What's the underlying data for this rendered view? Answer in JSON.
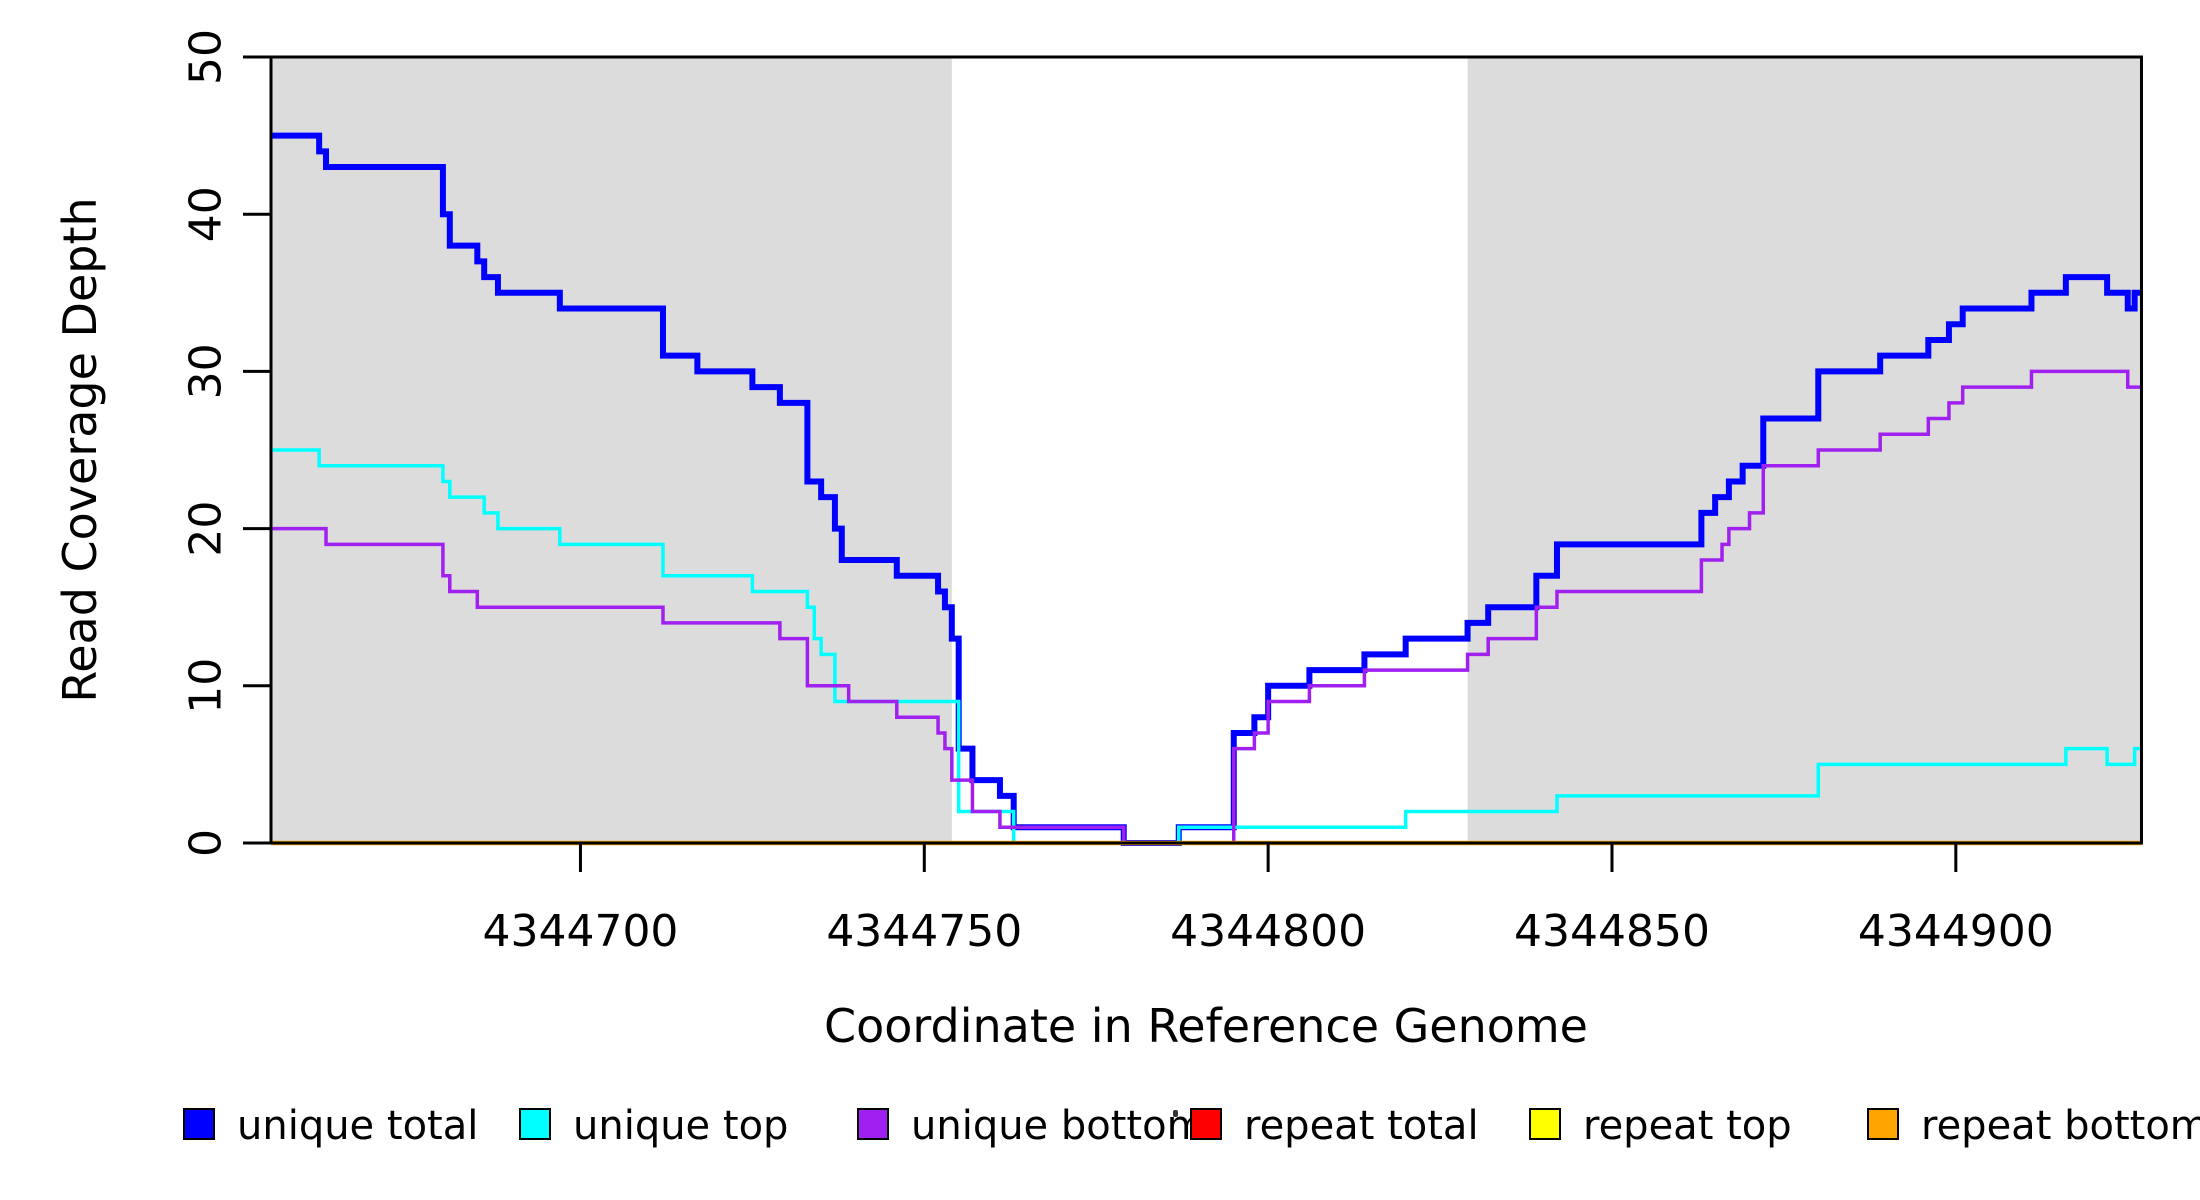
{
  "figure": {
    "kind": "R step plot of sequencing read coverage",
    "background": "#ffffff",
    "shade_color": "#dcdcdc"
  },
  "legend": [
    {
      "name": "unique-total",
      "label": "unique total",
      "color": "#0000ff"
    },
    {
      "name": "unique-top",
      "label": "unique top",
      "color": "#00ffff"
    },
    {
      "name": "unique-bottom",
      "label": "unique bottom",
      "color": "#a020f0"
    },
    {
      "name": "repeat-total",
      "label": "repeat total",
      "color": "#ff0000"
    },
    {
      "name": "repeat-top",
      "label": "repeat top",
      "color": "#ffff00"
    },
    {
      "name": "repeat-bottom",
      "label": "repeat bottom",
      "color": "#ffa500"
    }
  ],
  "chart_data": {
    "type": "line",
    "subtype": "step-after",
    "title": "",
    "xlabel": "Coordinate in Reference Genome",
    "ylabel": "Read Coverage Depth",
    "xlim": [
      4344655,
      4344927
    ],
    "ylim": [
      0,
      50
    ],
    "x_ticks": [
      {
        "value": 4344700,
        "label": "4344700"
      },
      {
        "value": 4344750,
        "label": "4344750"
      },
      {
        "value": 4344800,
        "label": "4344800"
      },
      {
        "value": 4344850,
        "label": "4344850"
      },
      {
        "value": 4344900,
        "label": "4344900"
      }
    ],
    "y_ticks": [
      {
        "value": 0,
        "label": "0"
      },
      {
        "value": 10,
        "label": "10"
      },
      {
        "value": 20,
        "label": "20"
      },
      {
        "value": 30,
        "label": "30"
      },
      {
        "value": 40,
        "label": "40"
      },
      {
        "value": 50,
        "label": "50"
      }
    ],
    "grid": false,
    "legend_position": "bottom",
    "shaded_regions": [
      {
        "x0": 4344655,
        "x1": 4344754,
        "color": "#dcdcdc"
      },
      {
        "x0": 4344829,
        "x1": 4344927,
        "color": "#dcdcdc"
      }
    ],
    "series": [
      {
        "name": "unique total",
        "color": "#0000ff",
        "width": 6,
        "steps": [
          [
            4344655,
            45
          ],
          [
            4344662,
            44
          ],
          [
            4344663,
            43
          ],
          [
            4344680,
            40
          ],
          [
            4344681,
            38
          ],
          [
            4344685,
            37
          ],
          [
            4344686,
            36
          ],
          [
            4344688,
            35
          ],
          [
            4344697,
            34
          ],
          [
            4344712,
            31
          ],
          [
            4344717,
            30
          ],
          [
            4344725,
            29
          ],
          [
            4344729,
            28
          ],
          [
            4344733,
            23
          ],
          [
            4344735,
            22
          ],
          [
            4344737,
            20
          ],
          [
            4344738,
            18
          ],
          [
            4344746,
            17
          ],
          [
            4344752,
            16
          ],
          [
            4344753,
            15
          ],
          [
            4344754,
            13
          ],
          [
            4344755,
            6
          ],
          [
            4344757,
            4
          ],
          [
            4344761,
            3
          ],
          [
            4344763,
            1
          ],
          [
            4344779,
            0
          ],
          [
            4344787,
            1
          ],
          [
            4344795,
            7
          ],
          [
            4344798,
            8
          ],
          [
            4344800,
            10
          ],
          [
            4344806,
            11
          ],
          [
            4344814,
            12
          ],
          [
            4344820,
            13
          ],
          [
            4344829,
            14
          ],
          [
            4344832,
            15
          ],
          [
            4344839,
            17
          ],
          [
            4344842,
            19
          ],
          [
            4344863,
            21
          ],
          [
            4344865,
            22
          ],
          [
            4344867,
            23
          ],
          [
            4344869,
            24
          ],
          [
            4344872,
            27
          ],
          [
            4344880,
            30
          ],
          [
            4344889,
            31
          ],
          [
            4344896,
            32
          ],
          [
            4344899,
            33
          ],
          [
            4344901,
            34
          ],
          [
            4344911,
            35
          ],
          [
            4344916,
            36
          ],
          [
            4344922,
            35
          ],
          [
            4344925,
            34
          ],
          [
            4344926,
            35
          ]
        ]
      },
      {
        "name": "unique top",
        "color": "#00ffff",
        "width": 3.5,
        "steps": [
          [
            4344655,
            25
          ],
          [
            4344662,
            24
          ],
          [
            4344680,
            23
          ],
          [
            4344681,
            22
          ],
          [
            4344686,
            21
          ],
          [
            4344688,
            20
          ],
          [
            4344697,
            19
          ],
          [
            4344712,
            17
          ],
          [
            4344725,
            16
          ],
          [
            4344733,
            15
          ],
          [
            4344734,
            13
          ],
          [
            4344735,
            12
          ],
          [
            4344737,
            9
          ],
          [
            4344755,
            2
          ],
          [
            4344763,
            0
          ],
          [
            4344787,
            1
          ],
          [
            4344820,
            2
          ],
          [
            4344842,
            3
          ],
          [
            4344880,
            5
          ],
          [
            4344916,
            6
          ],
          [
            4344922,
            5
          ],
          [
            4344926,
            6
          ]
        ]
      },
      {
        "name": "unique bottom",
        "color": "#a020f0",
        "width": 3.5,
        "steps": [
          [
            4344655,
            20
          ],
          [
            4344663,
            19
          ],
          [
            4344680,
            17
          ],
          [
            4344681,
            16
          ],
          [
            4344685,
            15
          ],
          [
            4344712,
            14
          ],
          [
            4344729,
            13
          ],
          [
            4344733,
            10
          ],
          [
            4344739,
            9
          ],
          [
            4344746,
            8
          ],
          [
            4344752,
            7
          ],
          [
            4344753,
            6
          ],
          [
            4344754,
            4
          ],
          [
            4344757,
            2
          ],
          [
            4344761,
            1
          ],
          [
            4344779,
            0
          ],
          [
            4344795,
            6
          ],
          [
            4344798,
            7
          ],
          [
            4344800,
            9
          ],
          [
            4344806,
            10
          ],
          [
            4344814,
            11
          ],
          [
            4344829,
            12
          ],
          [
            4344832,
            13
          ],
          [
            4344839,
            15
          ],
          [
            4344842,
            16
          ],
          [
            4344863,
            18
          ],
          [
            4344866,
            19
          ],
          [
            4344867,
            20
          ],
          [
            4344870,
            21
          ],
          [
            4344872,
            24
          ],
          [
            4344880,
            25
          ],
          [
            4344889,
            26
          ],
          [
            4344896,
            27
          ],
          [
            4344899,
            28
          ],
          [
            4344901,
            29
          ],
          [
            4344911,
            30
          ],
          [
            4344925,
            29
          ]
        ]
      },
      {
        "name": "repeat total",
        "color": "#ff0000",
        "width": 3.5,
        "steps": [
          [
            4344655,
            0
          ]
        ]
      },
      {
        "name": "repeat top",
        "color": "#ffff00",
        "width": 3.5,
        "steps": [
          [
            4344655,
            0
          ]
        ]
      },
      {
        "name": "repeat bottom",
        "color": "#ffa500",
        "width": 4.5,
        "steps": [
          [
            4344655,
            0
          ]
        ]
      }
    ]
  }
}
